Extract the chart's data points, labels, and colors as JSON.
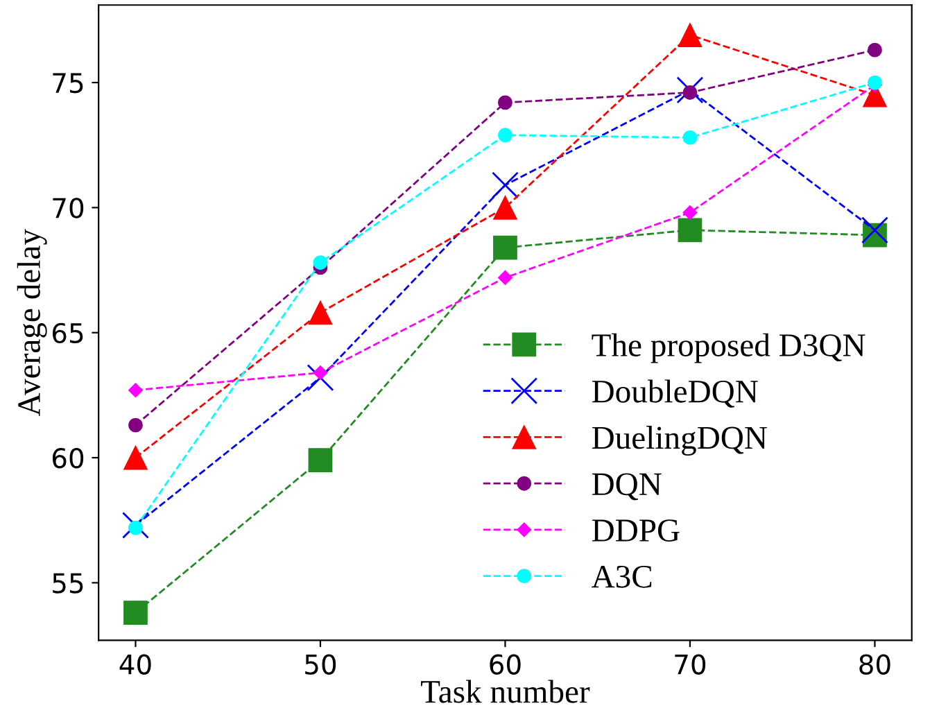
{
  "chart_data": {
    "type": "line",
    "xlabel": "Task number",
    "ylabel": "Average delay",
    "x": [
      40,
      50,
      60,
      70,
      80
    ],
    "series": [
      {
        "name": "The proposed D3QN",
        "color": "#228b22",
        "marker": "square",
        "values": [
          53.8,
          59.9,
          68.4,
          69.1,
          68.9
        ]
      },
      {
        "name": "DoubleDQN",
        "color": "#0000ff",
        "marker": "cross",
        "values": [
          57.3,
          63.2,
          70.9,
          74.7,
          69.1
        ]
      },
      {
        "name": "DuelingDQN",
        "color": "#ff0000",
        "marker": "triangle",
        "values": [
          60.0,
          65.8,
          70.0,
          76.9,
          74.5
        ]
      },
      {
        "name": "DQN",
        "color": "#800080",
        "marker": "circle",
        "values": [
          61.3,
          67.6,
          74.2,
          74.6,
          76.3
        ]
      },
      {
        "name": "DDPG",
        "color": "#ff00ff",
        "marker": "diamond",
        "values": [
          62.7,
          63.4,
          67.2,
          69.8,
          74.9
        ]
      },
      {
        "name": "A3C",
        "color": "#00ffff",
        "marker": "circle",
        "values": [
          57.2,
          67.8,
          72.9,
          72.8,
          75.0
        ]
      }
    ],
    "line_style": "dashed",
    "xlim": [
      38,
      82
    ],
    "ylim": [
      52.7,
      78.1
    ],
    "xticks": [
      40,
      50,
      60,
      70,
      80
    ],
    "yticks": [
      55,
      60,
      65,
      70,
      75
    ],
    "grid": false,
    "legend": "bottom right"
  }
}
